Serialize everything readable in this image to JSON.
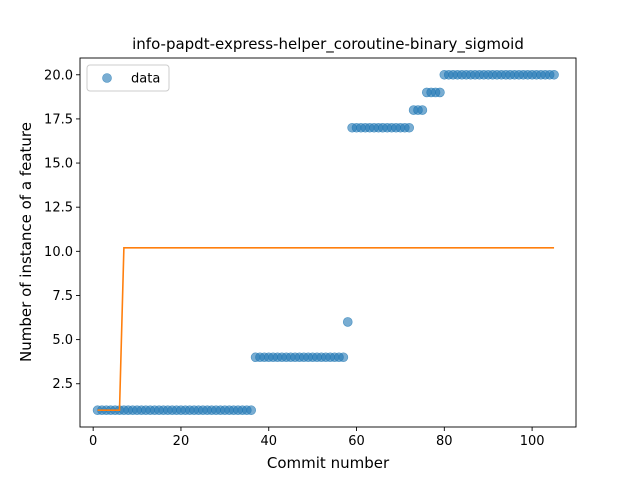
{
  "chart_data": {
    "type": "scatter",
    "title": "info-papdt-express-helper_coroutine-binary_sigmoid",
    "xlabel": "Commit number",
    "ylabel": "Number of instance of a feature",
    "xlim": [
      -3,
      110
    ],
    "ylim": [
      0.05,
      20.95
    ],
    "xticks": [
      0,
      20,
      40,
      60,
      80,
      100
    ],
    "yticks": [
      2.5,
      5.0,
      7.5,
      10.0,
      12.5,
      15.0,
      17.5,
      20.0
    ],
    "ytick_labels": [
      "2.5",
      "5.0",
      "7.5",
      "10.0",
      "12.5",
      "15.0",
      "17.5",
      "20.0"
    ],
    "grid": false,
    "legend": {
      "position": "top-left",
      "entries": [
        "data"
      ]
    },
    "series": [
      {
        "name": "data",
        "kind": "scatter",
        "color": "#1f77b4",
        "alpha": 0.6,
        "segments": [
          {
            "x_start": 1,
            "x_end": 36,
            "y": 1
          },
          {
            "x_start": 37,
            "x_end": 57,
            "y": 4
          },
          {
            "x_start": 58,
            "x_end": 58,
            "y": 6
          },
          {
            "x_start": 59,
            "x_end": 72,
            "y": 17
          },
          {
            "x_start": 73,
            "x_end": 75,
            "y": 18
          },
          {
            "x_start": 76,
            "x_end": 79,
            "y": 19
          },
          {
            "x_start": 80,
            "x_end": 105,
            "y": 20
          }
        ]
      },
      {
        "kind": "line",
        "color": "#ff7f0e",
        "x": [
          1,
          6,
          7,
          105
        ],
        "y": [
          1,
          1,
          10.2,
          10.2
        ]
      }
    ]
  }
}
